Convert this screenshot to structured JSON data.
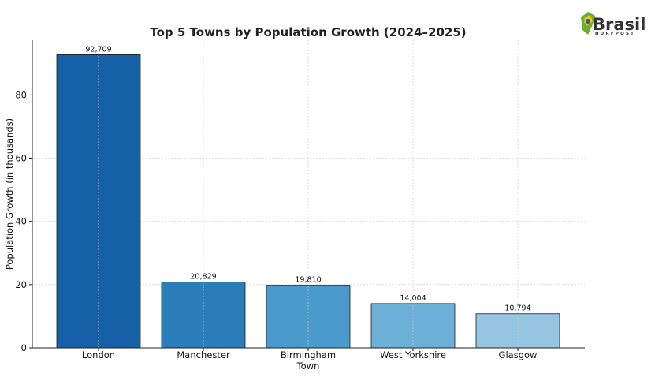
{
  "logo": {
    "name": "Brasil",
    "sub": "HURFPOST",
    "icon": "flag-leaf-icon",
    "green": "#6cae2f",
    "yellow": "#f1c40f"
  },
  "chart_data": {
    "type": "bar",
    "title": "Top 5 Towns by Population Growth (2024–2025)",
    "xlabel": "Town",
    "ylabel": "Population Growth (in thousands)",
    "categories": [
      "London",
      "Manchester",
      "Birmingham",
      "West Yorkshire",
      "Glasgow"
    ],
    "values": [
      92.709,
      20.829,
      19.81,
      14.004,
      10.794
    ],
    "value_labels": [
      "92,709",
      "20,829",
      "19,810",
      "14,004",
      "10,794"
    ],
    "colors": [
      "#1660a8",
      "#2c7ebb",
      "#4a9acc",
      "#6cb0d7",
      "#96c5e2"
    ],
    "yticks": [
      0,
      20,
      40,
      60,
      80
    ],
    "ylim": [
      0,
      97.3
    ],
    "grid": true
  }
}
